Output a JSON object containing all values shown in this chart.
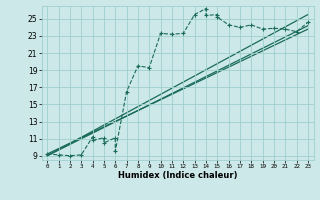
{
  "title": "",
  "xlabel": "Humidex (Indice chaleur)",
  "ylabel": "",
  "bg_color": "#cce8e8",
  "line_color": "#1a6b5a",
  "grid_color": "#9ecece",
  "xlim": [
    -0.5,
    23.5
  ],
  "ylim": [
    8.5,
    26.5
  ],
  "xticks": [
    0,
    1,
    2,
    3,
    4,
    5,
    6,
    7,
    8,
    9,
    10,
    11,
    12,
    13,
    14,
    15,
    16,
    17,
    18,
    19,
    20,
    21,
    22,
    23
  ],
  "yticks": [
    9,
    11,
    13,
    15,
    17,
    19,
    21,
    23,
    25
  ],
  "line1_x": [
    0,
    1,
    2,
    3,
    4,
    4,
    5,
    5,
    6,
    6,
    7,
    8,
    9,
    10,
    11,
    12,
    13,
    14,
    14,
    15,
    15,
    16,
    17,
    18,
    19,
    20,
    21,
    22,
    23
  ],
  "line1_y": [
    9.2,
    9.1,
    9.0,
    9.1,
    11.2,
    10.8,
    11.1,
    10.5,
    11.1,
    9.5,
    16.5,
    19.5,
    19.3,
    23.3,
    23.2,
    23.3,
    25.5,
    26.2,
    25.4,
    25.5,
    25.2,
    24.3,
    24.0,
    24.3,
    23.8,
    23.9,
    23.8,
    23.5,
    24.6
  ],
  "line2_x": [
    0,
    23
  ],
  "line2_y": [
    9.2,
    23.8
  ],
  "line3_x": [
    0,
    23
  ],
  "line3_y": [
    9.0,
    25.5
  ],
  "line4_x": [
    0,
    23
  ],
  "line4_y": [
    9.0,
    24.2
  ]
}
